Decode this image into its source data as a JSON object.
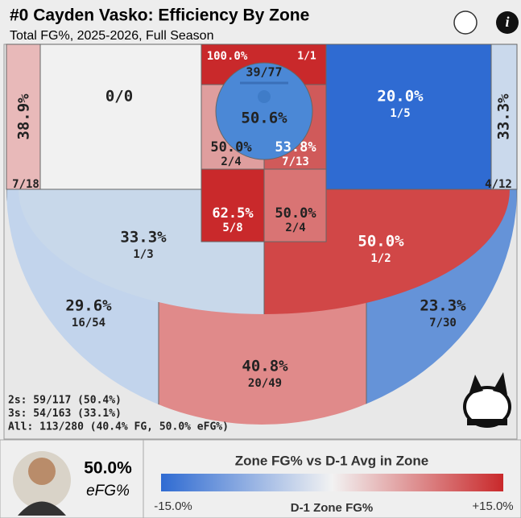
{
  "header": {
    "title": "#0 Cayden Vasko: Efficiency By Zone",
    "subtitle": "Total FG%, 2025-2026, Full Season"
  },
  "zones": [
    {
      "pct": "38.9%",
      "made_att": "7/18",
      "color": "#e8b9b9"
    },
    {
      "made_att": "0/0",
      "color": "#f1f1f1"
    },
    {
      "pct": "20.0%",
      "made_att": "1/5",
      "color": "#2f6bd2"
    },
    {
      "pct": "33.3%",
      "made_att": "4/12",
      "color": "#cad9ec"
    },
    {
      "pct": "100.0%",
      "made_att": "1/1",
      "color": "#c9292b"
    },
    {
      "pct": "50.6%",
      "made_att": "39/77",
      "color": "#4b88d6"
    },
    {
      "pct": "50.0%",
      "made_att": "2/4",
      "color": "#df9e9e"
    },
    {
      "pct": "53.8%",
      "made_att": "7/13",
      "color": "#d05a5a"
    },
    {
      "pct": "62.5%",
      "made_att": "5/8",
      "color": "#c9292b"
    },
    {
      "pct": "50.0%",
      "made_att": "2/4",
      "color": "#d97474"
    },
    {
      "pct": "33.3%",
      "made_att": "1/3",
      "color": "#c8d8ea"
    },
    {
      "pct": "50.0%",
      "made_att": "1/2",
      "color": "#d14747"
    },
    {
      "pct": "29.6%",
      "made_att": "16/54",
      "color": "#c2d4ec"
    },
    {
      "pct": "40.8%",
      "made_att": "20/49",
      "color": "#e08a8a"
    },
    {
      "pct": "23.3%",
      "made_att": "7/30",
      "color": "#6593d8"
    }
  ],
  "stats": [
    "2s: 59/117 (50.4%)",
    "3s: 54/163 (33.1%)",
    "All: 113/280 (40.4% FG, 50.0% eFG%)"
  ],
  "footer": {
    "efg_value": "50.0%",
    "efg_label": "eFG%",
    "legend_title": "Zone FG% vs D-1 Avg in Zone",
    "legend_min": "-15.0%",
    "legend_center": "D-1 Zone FG%",
    "legend_max": "+15.0%",
    "gradient": [
      "#2f6bd2",
      "#f2f2f2",
      "#c9292b"
    ]
  }
}
